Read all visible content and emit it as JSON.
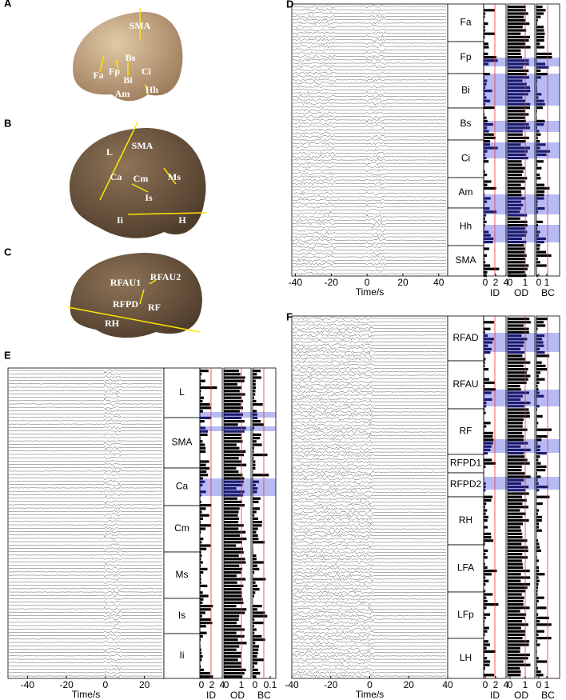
{
  "panels": {
    "A": {
      "letter": "A",
      "labels": [
        "SMA",
        "Bs",
        "Fa",
        "Fp",
        "Ci",
        "Bi",
        "Am",
        "Hh"
      ]
    },
    "B": {
      "letter": "B",
      "labels": [
        "L",
        "SMA",
        "Ca",
        "Cm",
        "Ms",
        "Is",
        "Ii",
        "H"
      ]
    },
    "C": {
      "letter": "C",
      "labels": [
        "RFAU1",
        "RFAU2",
        "RFPD",
        "RF",
        "RH"
      ]
    },
    "D": {
      "letter": "D",
      "regions": [
        "Fa",
        "Fp",
        "Bi",
        "Bs",
        "Ci",
        "Am",
        "Hh",
        "SMA"
      ],
      "xticks": [
        -40,
        -20,
        0,
        20,
        40
      ],
      "xlabel": "Time/s",
      "id_ticks": [
        0,
        2,
        4
      ],
      "od_ticks": [
        0,
        1
      ],
      "bc_ticks": [
        0,
        1
      ],
      "metrics": [
        "ID",
        "OD",
        "BC"
      ]
    },
    "E": {
      "letter": "E",
      "regions": [
        "L",
        "SMA",
        "Ca",
        "Cm",
        "Ms",
        "Is",
        "Ii"
      ],
      "xticks": [
        -40,
        -20,
        0,
        20
      ],
      "xlabel": "Time/s",
      "id_ticks": [
        0,
        2,
        4
      ],
      "od_ticks": [
        0,
        1
      ],
      "bc_ticks": [
        0,
        0.1
      ],
      "metrics": [
        "ID",
        "OD",
        "BC"
      ]
    },
    "F": {
      "letter": "F",
      "regions": [
        "RFAD",
        "RFAU",
        "RF",
        "RFPD1",
        "RFPD2",
        "RH",
        "LFA",
        "LFp",
        "LH"
      ],
      "xticks": [
        -40,
        -20,
        0,
        20,
        40
      ],
      "xlabel": "Time/s",
      "id_ticks": [
        0,
        2,
        4
      ],
      "od_ticks": [
        0,
        1
      ],
      "bc_ticks": [
        0,
        1
      ],
      "metrics": [
        "ID",
        "OD",
        "BC"
      ]
    }
  }
}
